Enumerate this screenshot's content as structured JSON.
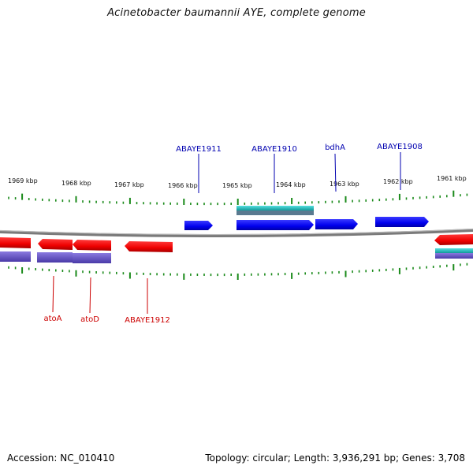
{
  "title": "Acinetobacter baumannii AYE, complete genome",
  "footer": {
    "accession": "Accession: NC_010410",
    "summary": "Topology: circular; Length: 3,936,291 bp; Genes: 3,708"
  },
  "colors": {
    "forward_gene": "#0000ee",
    "reverse_gene": "#ee0000",
    "forward_label": "#0000b0",
    "reverse_label": "#cc0000",
    "tick": "#1a8a1a",
    "backbone": "#888888",
    "cyan_feature": "#22c8c8",
    "purple_feature": "#6a5acd"
  },
  "scale": {
    "ticks": [
      "1969 kbp",
      "1968 kbp",
      "1967 kbp",
      "1966 kbp",
      "1965 kbp",
      "1964 kbp",
      "1963 kbp",
      "1962 kbp",
      "1961 kbp"
    ]
  },
  "genes": {
    "forward": [
      "ABAYE1911",
      "ABAYE1910",
      "bdhA",
      "ABAYE1908"
    ],
    "reverse": [
      "atoA",
      "atoD",
      "ABAYE1912"
    ]
  }
}
